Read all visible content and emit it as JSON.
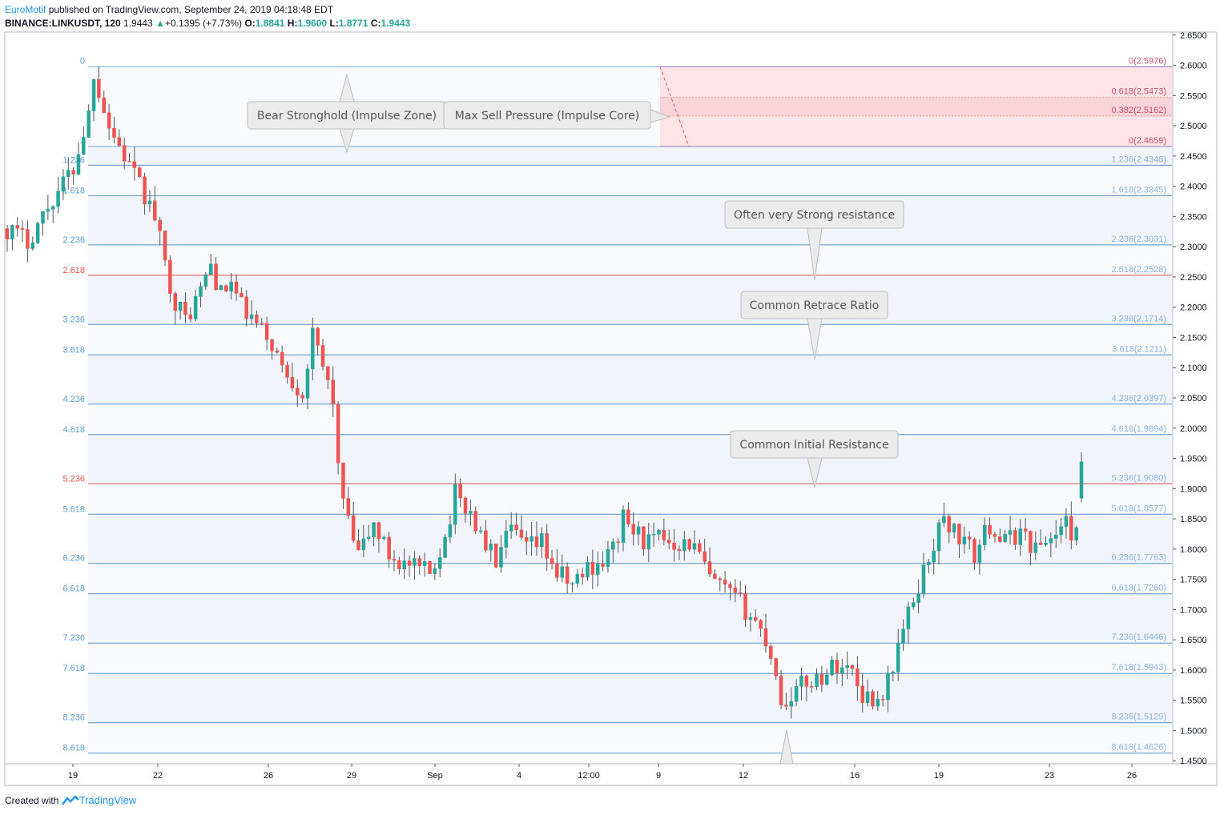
{
  "header": {
    "author": "EuroMotif",
    "published_text": "published on TradingView.com, September 24, 2019 04:18:48 EDT",
    "symbol": "BINANCE:LINKUSDT, 120",
    "last": "1.9443",
    "change_arrow": "▲",
    "change": "+0.1395 (+7.73%)",
    "o_label": "O:",
    "o": "1.8841",
    "h_label": "H:",
    "h": "1.9600",
    "l_label": "L:",
    "l": "1.8771",
    "c_label": "C:",
    "c": "1.9443"
  },
  "footer": {
    "created_with": "Created with",
    "brand": "TradingView"
  },
  "colors": {
    "up": "#26a69a",
    "down": "#ef5350",
    "fib_blue": "#5b9bd5",
    "fib_red": "#ef5350",
    "zone": "#fde4e7",
    "accent": "#2196f3"
  },
  "chart_data": {
    "type": "candlestick",
    "ylim": [
      1.445,
      2.655
    ],
    "y_ticks": [
      "2.6500",
      "2.6000",
      "2.5500",
      "2.5000",
      "2.4500",
      "2.4000",
      "2.3500",
      "2.3000",
      "2.2500",
      "2.2000",
      "2.1500",
      "2.1000",
      "2.0500",
      "2.0000",
      "1.9500",
      "1.9000",
      "1.8500",
      "1.8000",
      "1.7500",
      "1.7000",
      "1.6500",
      "1.6000",
      "1.5500",
      "1.5000",
      "1.4500"
    ],
    "x_ticks": [
      "19",
      "22",
      "26",
      "29",
      "Sep",
      "4",
      "12:00",
      "9",
      "12",
      "16",
      "19",
      "23",
      "26"
    ],
    "fib_extension": {
      "levels": [
        {
          "ratio": "1.236",
          "price": "2.4348",
          "label": "1.236(2.4348)",
          "red": false
        },
        {
          "ratio": "1.618",
          "price": "2.3845",
          "label": "1.618(2.3845)",
          "red": false
        },
        {
          "ratio": "2.236",
          "price": "2.3031",
          "label": "2.236(2.3031)",
          "red": false
        },
        {
          "ratio": "2.618",
          "price": "2.2528",
          "label": "2.618(2.2528)",
          "red": true
        },
        {
          "ratio": "3.236",
          "price": "2.1714",
          "label": "3.236(2.1714)",
          "red": false
        },
        {
          "ratio": "3.618",
          "price": "2.1211",
          "label": "3.618(2.1211)",
          "red": false
        },
        {
          "ratio": "4.236",
          "price": "2.0397",
          "label": "4.236(2.0397)",
          "red": false
        },
        {
          "ratio": "4.618",
          "price": "1.9894",
          "label": "4.618(1.9894)",
          "red": false
        },
        {
          "ratio": "5.236",
          "price": "1.9080",
          "label": "5.236(1.9080)",
          "red": true
        },
        {
          "ratio": "5.618",
          "price": "1.8577",
          "label": "5.618(1.8577)",
          "red": false
        },
        {
          "ratio": "6.236",
          "price": "1.7763",
          "label": "6.236(1.7763)",
          "red": false
        },
        {
          "ratio": "6.618",
          "price": "1.7260",
          "label": "6.618(1.7260)",
          "red": false
        },
        {
          "ratio": "7.236",
          "price": "1.6446",
          "label": "7.236(1.6446)",
          "red": false
        },
        {
          "ratio": "7.618",
          "price": "1.5943",
          "label": "7.618(1.5943)",
          "red": false
        },
        {
          "ratio": "8.236",
          "price": "1.5129",
          "label": "8.236(1.5129)",
          "red": false
        },
        {
          "ratio": "8.618",
          "price": "1.4626",
          "label": "8.618(1.4626)",
          "red": false
        }
      ],
      "top": {
        "ratio": "0",
        "price": "2.5976",
        "label": "0(2.5976)"
      },
      "one": {
        "ratio": "1",
        "price": "2.4659"
      }
    },
    "zone_levels": [
      {
        "label": "0.618(2.5473)",
        "price": "2.5473"
      },
      {
        "label": "0.382(2.5162)",
        "price": "2.5162"
      },
      {
        "label": "0(2.4659)",
        "price": "2.4659"
      }
    ],
    "annotations": [
      {
        "text": "Bear Stronghold (Impulse Zone)"
      },
      {
        "text": "Max Sell Pressure (Impulse Core)"
      },
      {
        "text": "Often very Strong resistance"
      },
      {
        "text": "Common Retrace Ratio"
      },
      {
        "text": "Common Initial Resistance"
      }
    ],
    "price_path": [
      [
        0,
        2.33
      ],
      [
        4,
        2.31
      ],
      [
        9,
        2.38
      ],
      [
        13,
        2.43
      ],
      [
        16,
        2.52
      ],
      [
        17,
        2.59
      ],
      [
        18,
        2.56
      ],
      [
        20,
        2.5
      ],
      [
        23,
        2.45
      ],
      [
        26,
        2.4
      ],
      [
        29,
        2.35
      ],
      [
        31,
        2.27
      ],
      [
        33,
        2.21
      ],
      [
        35,
        2.18
      ],
      [
        37,
        2.21
      ],
      [
        40,
        2.27
      ],
      [
        42,
        2.22
      ],
      [
        44,
        2.24
      ],
      [
        46,
        2.2
      ],
      [
        49,
        2.17
      ],
      [
        52,
        2.14
      ],
      [
        54,
        2.1
      ],
      [
        56,
        2.08
      ],
      [
        58,
        2.06
      ],
      [
        60,
        2.15
      ],
      [
        62,
        2.1
      ],
      [
        64,
        2.05
      ],
      [
        65,
        1.93
      ],
      [
        67,
        1.84
      ],
      [
        69,
        1.79
      ],
      [
        72,
        1.84
      ],
      [
        75,
        1.79
      ],
      [
        79,
        1.77
      ],
      [
        83,
        1.76
      ],
      [
        86,
        1.82
      ],
      [
        88,
        1.89
      ],
      [
        91,
        1.86
      ],
      [
        93,
        1.82
      ],
      [
        96,
        1.78
      ],
      [
        99,
        1.83
      ],
      [
        102,
        1.8
      ],
      [
        105,
        1.81
      ],
      [
        108,
        1.76
      ],
      [
        111,
        1.74
      ],
      [
        114,
        1.77
      ],
      [
        117,
        1.78
      ],
      [
        119,
        1.8
      ],
      [
        121,
        1.85
      ],
      [
        123,
        1.83
      ],
      [
        126,
        1.81
      ],
      [
        129,
        1.82
      ],
      [
        132,
        1.81
      ],
      [
        134,
        1.81
      ],
      [
        136,
        1.79
      ],
      [
        138,
        1.75
      ],
      [
        141,
        1.73
      ],
      [
        144,
        1.71
      ],
      [
        147,
        1.68
      ],
      [
        149,
        1.65
      ],
      [
        151,
        1.6
      ],
      [
        152,
        1.54
      ],
      [
        154,
        1.56
      ],
      [
        157,
        1.58
      ],
      [
        160,
        1.59
      ],
      [
        163,
        1.61
      ],
      [
        166,
        1.6
      ],
      [
        168,
        1.56
      ],
      [
        171,
        1.55
      ],
      [
        173,
        1.58
      ],
      [
        175,
        1.64
      ],
      [
        177,
        1.69
      ],
      [
        179,
        1.74
      ],
      [
        182,
        1.81
      ],
      [
        184,
        1.85
      ],
      [
        187,
        1.82
      ],
      [
        190,
        1.79
      ],
      [
        193,
        1.84
      ],
      [
        196,
        1.81
      ],
      [
        199,
        1.83
      ],
      [
        202,
        1.8
      ],
      [
        205,
        1.82
      ],
      [
        208,
        1.84
      ],
      [
        210,
        1.82
      ],
      [
        211,
        1.94
      ]
    ]
  }
}
